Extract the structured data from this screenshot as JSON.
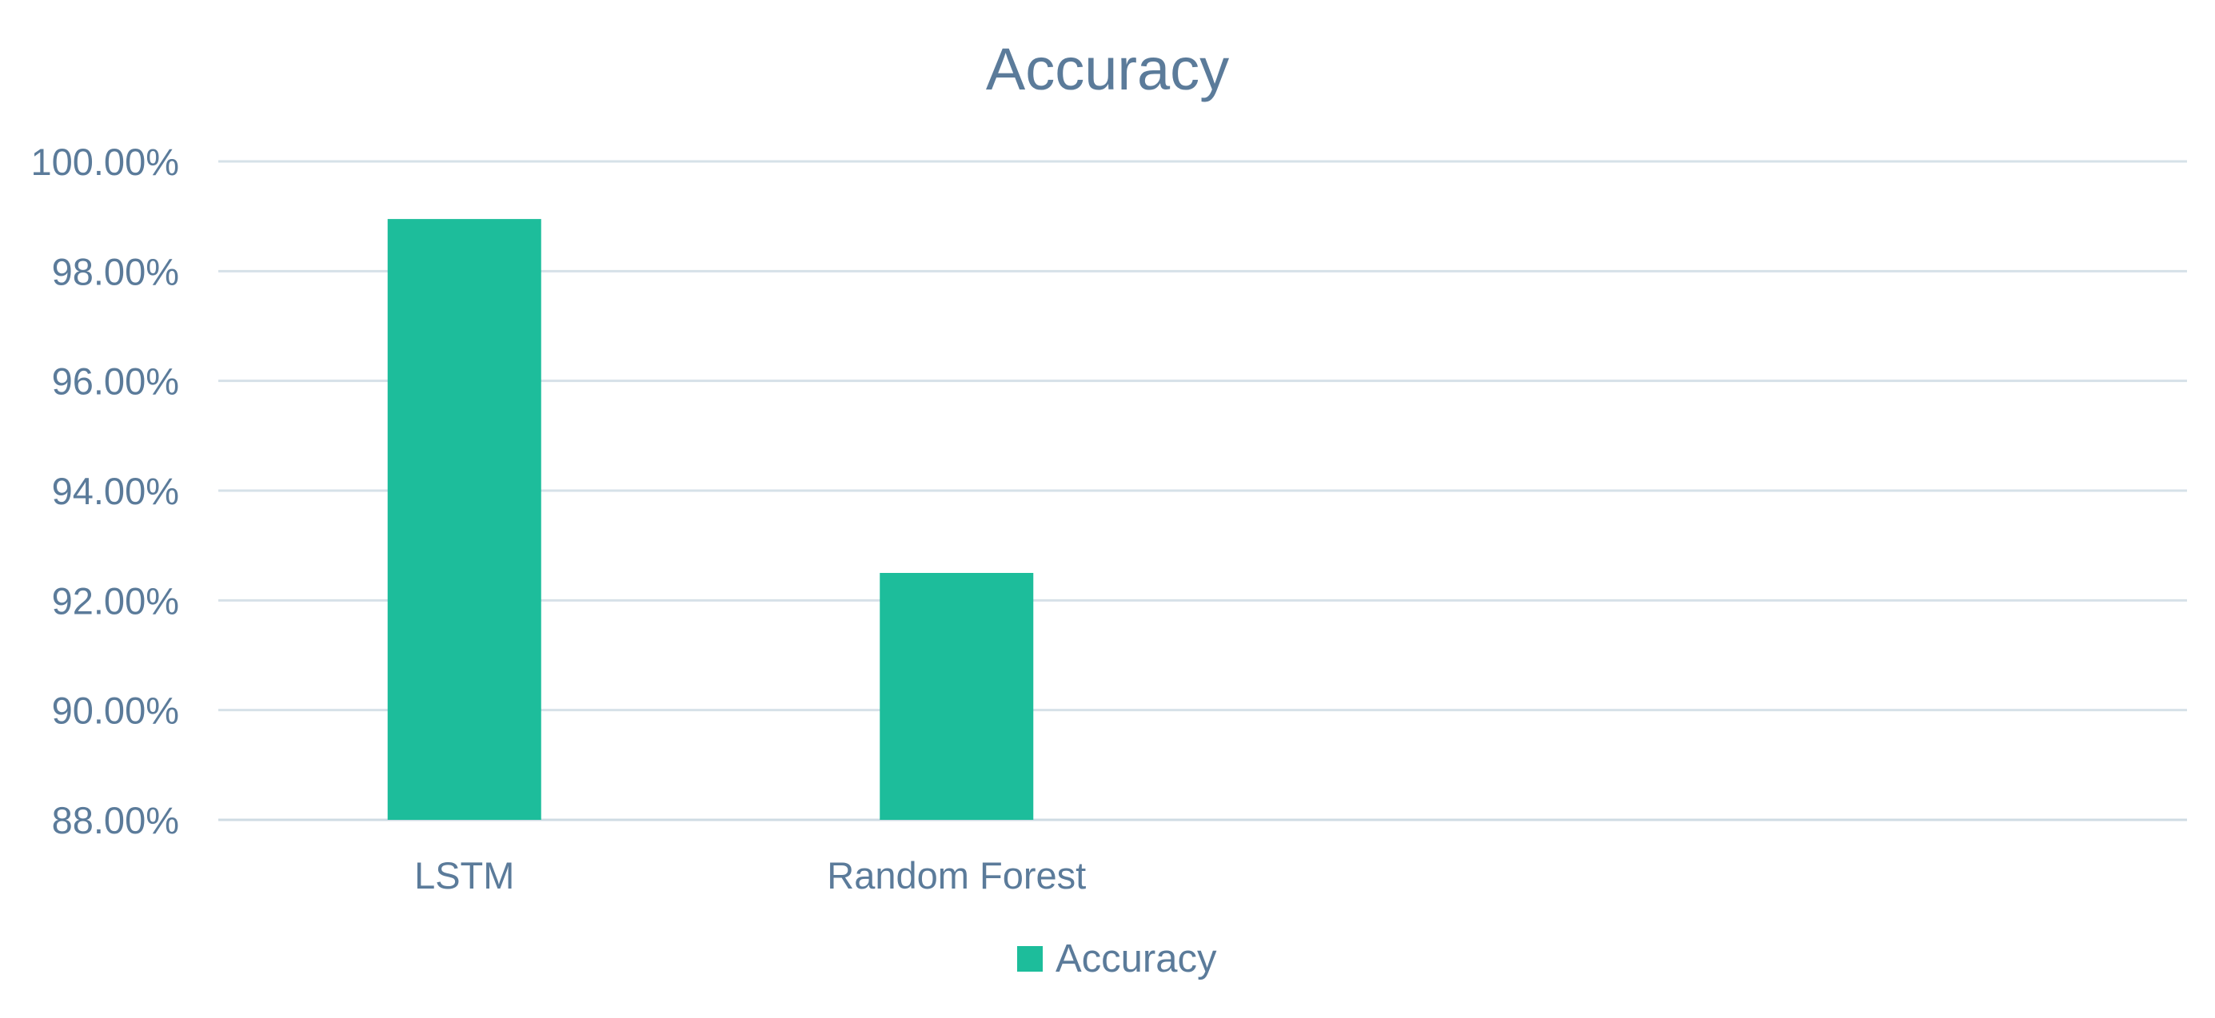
{
  "chart_data": {
    "type": "bar",
    "title": "Accuracy",
    "categories": [
      "LSTM",
      "Random Forest",
      "",
      ""
    ],
    "series": [
      {
        "name": "Accuracy",
        "values": [
          0.9895,
          0.925,
          null,
          null
        ],
        "color": "#1dbd9b"
      }
    ],
    "ylim": [
      0.88,
      1.0
    ],
    "yticks": [
      0.88,
      0.9,
      0.92,
      0.94,
      0.96,
      0.98,
      1.0
    ],
    "ytick_labels": [
      "88.00%",
      "90.00%",
      "92.00%",
      "94.00%",
      "96.00%",
      "98.00%",
      "100.00%"
    ],
    "grid": true,
    "legend": {
      "position": "bottom",
      "entries": [
        "Accuracy"
      ]
    }
  },
  "colors": {
    "text": "#5b7b9a",
    "grid": "#d6e1e8",
    "bar": "#1dbd9b"
  }
}
